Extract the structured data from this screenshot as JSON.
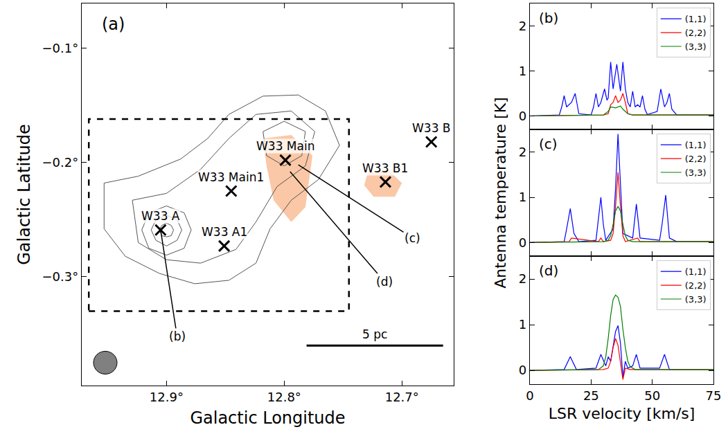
{
  "chart_data": [
    {
      "type": "scatter",
      "panel": "(a)",
      "xlabel": "Galactic Longitude",
      "ylabel": "Galactic Latitude",
      "xlim": [
        12.972,
        12.656
      ],
      "ylim": [
        -0.395,
        -0.061
      ],
      "xticks": [
        {
          "value": 12.9,
          "label": "12.9°"
        },
        {
          "value": 12.8,
          "label": "12.8°"
        },
        {
          "value": 12.7,
          "label": "12.7°"
        }
      ],
      "yticks": [
        {
          "value": -0.1,
          "label": "−0.1°"
        },
        {
          "value": -0.2,
          "label": "−0.2°"
        },
        {
          "value": -0.3,
          "label": "−0.3°"
        }
      ],
      "emission": {
        "color": "#f6a36c",
        "regions": [
          {
            "x": [
              12.818,
              12.794,
              12.776,
              12.782,
              12.794,
              12.809,
              12.815
            ],
            "y": [
              -0.179,
              -0.176,
              -0.194,
              -0.239,
              -0.252,
              -0.233,
              -0.203
            ]
          },
          {
            "x": [
              12.729,
              12.712,
              12.7,
              12.706,
              12.724,
              12.732
            ],
            "y": [
              -0.209,
              -0.206,
              -0.218,
              -0.23,
              -0.23,
              -0.22
            ]
          }
        ]
      },
      "contours": {
        "color": "#555555",
        "lines": [
          {
            "x": [
              12.953,
              12.924,
              12.888,
              12.865,
              12.847,
              12.818,
              12.788,
              12.765,
              12.753,
              12.771,
              12.794,
              12.812,
              12.824,
              12.847,
              12.876,
              12.906,
              12.935,
              12.953,
              12.953
            ],
            "y": [
              -0.218,
              -0.212,
              -0.197,
              -0.179,
              -0.158,
              -0.142,
              -0.141,
              -0.155,
              -0.185,
              -0.215,
              -0.233,
              -0.258,
              -0.288,
              -0.303,
              -0.306,
              -0.297,
              -0.282,
              -0.258,
              -0.218
            ]
          },
          {
            "x": [
              12.929,
              12.9,
              12.871,
              12.847,
              12.824,
              12.794,
              12.774,
              12.782,
              12.806,
              12.824,
              12.841,
              12.871,
              12.9,
              12.924,
              12.929
            ],
            "y": [
              -0.233,
              -0.227,
              -0.206,
              -0.179,
              -0.158,
              -0.155,
              -0.173,
              -0.203,
              -0.221,
              -0.252,
              -0.276,
              -0.288,
              -0.285,
              -0.27,
              -0.233
            ]
          },
          {
            "x": [
              12.818,
              12.8,
              12.782,
              12.785,
              12.8,
              12.815,
              12.818
            ],
            "y": [
              -0.173,
              -0.164,
              -0.173,
              -0.194,
              -0.203,
              -0.194,
              -0.173
            ]
          },
          {
            "x": [
              12.921,
              12.915,
              12.9,
              12.885,
              12.879,
              12.885,
              12.9,
              12.915,
              12.921
            ],
            "y": [
              -0.259,
              -0.244,
              -0.238,
              -0.244,
              -0.259,
              -0.275,
              -0.281,
              -0.275,
              -0.259
            ]
          },
          {
            "x": [
              12.913,
              12.909,
              12.9,
              12.891,
              12.887,
              12.891,
              12.9,
              12.909,
              12.913
            ],
            "y": [
              -0.259,
              -0.25,
              -0.246,
              -0.25,
              -0.259,
              -0.268,
              -0.273,
              -0.268,
              -0.259
            ]
          },
          {
            "x": [
              12.906,
              12.904,
              12.9,
              12.896,
              12.894,
              12.896,
              12.9,
              12.904,
              12.906
            ],
            "y": [
              -0.259,
              -0.255,
              -0.253,
              -0.255,
              -0.259,
              -0.264,
              -0.265,
              -0.264,
              -0.259
            ]
          }
        ]
      },
      "region": {
        "x": [
          12.966,
          12.745
        ],
        "y": [
          -0.33,
          -0.162
        ],
        "line_style": "dash",
        "color": "#000000"
      },
      "points": {
        "names": [
          "W33 A",
          "W33 A1",
          "W33 Main1",
          "W33 Main",
          "W33 B1",
          "W33 B"
        ],
        "x": [
          12.905,
          12.851,
          12.845,
          12.799,
          12.714,
          12.675
        ],
        "y": [
          -0.259,
          -0.273,
          -0.225,
          -0.198,
          -0.217,
          -0.182
        ],
        "marker": "x",
        "color": "#000000"
      },
      "pointers": [
        {
          "text": "(b)",
          "from": [
            12.905,
            -0.259
          ],
          "to": [
            12.891,
            -0.352
          ]
        },
        {
          "text": "(c)",
          "from": [
            12.788,
            -0.202
          ],
          "to": [
            12.691,
            -0.266
          ]
        },
        {
          "text": "(d)",
          "from": [
            12.795,
            -0.208
          ],
          "to": [
            12.715,
            -0.304
          ]
        }
      ],
      "scale_bar": {
        "label": "5 pc",
        "x": [
          12.781,
          12.665
        ],
        "y": -0.36,
        "color": "#000000"
      },
      "beam": {
        "x": 12.952,
        "y": -0.375,
        "diameter": 0.02,
        "color": "#808080"
      }
    },
    {
      "type": "line",
      "panel": "(b)",
      "xlim": [
        0,
        75
      ],
      "ylim": [
        -0.3,
        2.5
      ],
      "xticks": [
        0,
        25,
        50,
        75
      ],
      "yticks": [
        0,
        1,
        2
      ],
      "tick_labels": "y",
      "legend": "upper right",
      "series": [
        {
          "name": "(1,1)",
          "color": "blue",
          "x": [
            0,
            12,
            13,
            14,
            15,
            16,
            17,
            18.5,
            20,
            25,
            26,
            27,
            28,
            29,
            30.5,
            31.5,
            32,
            33,
            34,
            35.5,
            37,
            38,
            39,
            40,
            41,
            42,
            43,
            44,
            45,
            46,
            47,
            48,
            52,
            53.5,
            55,
            56,
            57,
            58,
            60,
            75
          ],
          "values": [
            0,
            0.02,
            0.2,
            0.45,
            0.2,
            0.25,
            0.3,
            0.5,
            0.05,
            0.02,
            0.2,
            0.5,
            0.2,
            0.3,
            0.6,
            0.35,
            0.4,
            1.2,
            0.6,
            1.15,
            0.55,
            1.2,
            0.6,
            0.3,
            0.2,
            0.55,
            0.2,
            0.25,
            0.2,
            0.45,
            0.15,
            0.03,
            0.1,
            0.6,
            0.2,
            0.3,
            0.5,
            0.15,
            0.02,
            0.02
          ]
        },
        {
          "name": "(2,2)",
          "color": "red",
          "x": [
            0,
            30,
            32,
            33,
            34,
            35,
            36,
            37,
            38,
            39,
            40,
            42,
            75
          ],
          "values": [
            0,
            0.02,
            0.05,
            0.25,
            0.3,
            0.45,
            0.3,
            0.35,
            0.5,
            0.3,
            0.05,
            0.02,
            0.02
          ]
        },
        {
          "name": "(3,3)",
          "color": "green",
          "x": [
            0,
            30,
            32,
            33,
            35,
            37,
            38,
            40,
            42,
            75
          ],
          "values": [
            0,
            0.02,
            0.1,
            0.2,
            0.18,
            0.22,
            0.15,
            0.05,
            0.02,
            0.02
          ]
        }
      ]
    },
    {
      "type": "line",
      "panel": "(c)",
      "ylabel": "Antenna temperature [K]",
      "xlim": [
        0,
        75
      ],
      "ylim": [
        -0.3,
        2.5
      ],
      "xticks": [
        0,
        25,
        50,
        75
      ],
      "yticks": [
        0,
        1,
        2
      ],
      "tick_labels": "y",
      "legend": "upper right",
      "series": [
        {
          "name": "(1,1)",
          "color": "blue",
          "x": [
            0,
            14,
            15,
            16.5,
            18,
            20,
            27,
            28,
            29,
            30,
            31,
            34,
            35,
            36,
            37,
            38,
            42,
            43.5,
            45,
            53,
            54,
            55.5,
            57,
            60,
            75
          ],
          "values": [
            0,
            0.02,
            0.3,
            0.75,
            0.2,
            0.02,
            0.05,
            0.5,
            1.0,
            0.4,
            0.05,
            0.3,
            1.2,
            2.4,
            1.3,
            0.2,
            0.1,
            0.85,
            0.1,
            0.05,
            0.4,
            1.05,
            0.1,
            0.02,
            0.02
          ]
        },
        {
          "name": "(2,2)",
          "color": "red",
          "x": [
            0,
            16,
            17,
            28,
            29,
            30,
            33,
            34,
            35,
            36,
            37,
            38,
            39,
            44,
            45,
            75
          ],
          "values": [
            0,
            0.02,
            0.1,
            0.02,
            0.1,
            0.02,
            0.05,
            0.2,
            0.8,
            1.55,
            0.8,
            0.15,
            0.02,
            0.1,
            0.02,
            0.02
          ]
        },
        {
          "name": "(3,3)",
          "color": "green",
          "x": [
            0,
            30,
            32,
            33,
            34,
            35,
            36,
            37,
            38,
            39,
            40,
            42,
            75
          ],
          "values": [
            0,
            0.02,
            0.05,
            0.15,
            0.4,
            0.7,
            0.8,
            0.7,
            0.4,
            0.15,
            0.05,
            0.02,
            0.02
          ]
        }
      ]
    },
    {
      "type": "line",
      "panel": "(d)",
      "xlabel": "LSR velocity [km/s]",
      "xlim": [
        0,
        75
      ],
      "ylim": [
        -0.3,
        2.5
      ],
      "xticks": [
        0,
        25,
        50,
        75
      ],
      "yticks": [
        0,
        1,
        2
      ],
      "legend": "upper right",
      "series": [
        {
          "name": "(1,1)",
          "color": "blue",
          "x": [
            0,
            14,
            16.5,
            19,
            27,
            29,
            31,
            32,
            33,
            34,
            35,
            36,
            37,
            38,
            39,
            40,
            42,
            43.5,
            45,
            53,
            55,
            57,
            75
          ],
          "values": [
            0,
            0.02,
            0.3,
            0.02,
            0.05,
            0.35,
            0.1,
            0.3,
            0.2,
            0.5,
            0.85,
            0.98,
            0.6,
            -0.15,
            0.2,
            0.05,
            0.1,
            0.35,
            0.05,
            0.05,
            0.35,
            0.02,
            0.02
          ]
        },
        {
          "name": "(2,2)",
          "color": "red",
          "x": [
            0,
            30,
            32,
            33,
            34,
            35,
            36,
            37,
            38,
            39,
            41,
            75
          ],
          "values": [
            0,
            0.02,
            0.05,
            0.2,
            0.5,
            0.7,
            0.55,
            0.2,
            -0.2,
            0.05,
            0.02,
            0.02
          ]
        },
        {
          "name": "(3,3)",
          "color": "green",
          "x": [
            0,
            28,
            30,
            31,
            32,
            33,
            34,
            35,
            36,
            37,
            38,
            39,
            40,
            41,
            43,
            75
          ],
          "values": [
            0,
            0.02,
            0.1,
            0.3,
            0.7,
            1.2,
            1.55,
            1.65,
            1.6,
            1.4,
            0.9,
            0.5,
            0.2,
            0.08,
            0.02,
            0.02
          ]
        }
      ]
    }
  ]
}
